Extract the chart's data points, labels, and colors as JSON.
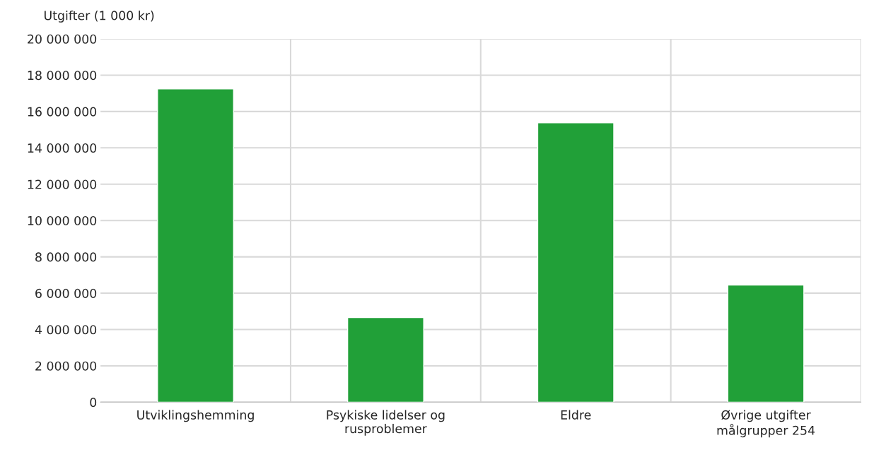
{
  "chart_data": {
    "type": "bar",
    "ylabel": "Utgifter (1 000 kr)",
    "categories": [
      "Utviklingshemming",
      "Psykiske lidelser og rusproblemer",
      "Eldre",
      "Øvrige utgifter målgrupper 254"
    ],
    "values": [
      17250000,
      4660000,
      15380000,
      6450000
    ],
    "color": "#21a038",
    "ylim": [
      0,
      20000000
    ],
    "yticks": [
      0,
      {
        "value": 2000000,
        "label": "2 000 000"
      },
      {
        "value": 4000000,
        "label": "4 000 000"
      },
      {
        "value": 6000000,
        "label": "6 000 000"
      },
      {
        "value": 8000000,
        "label": "8 000 000"
      },
      {
        "value": 10000000,
        "label": "10 000 000"
      },
      {
        "value": 12000000,
        "label": "12 000 000"
      },
      {
        "value": 14000000,
        "label": "14 000 000"
      },
      {
        "value": 16000000,
        "label": "16 000 000"
      },
      {
        "value": 18000000,
        "label": "18 000 000"
      },
      {
        "value": 20000000,
        "label": "20 000 000"
      }
    ],
    "grid": true
  }
}
